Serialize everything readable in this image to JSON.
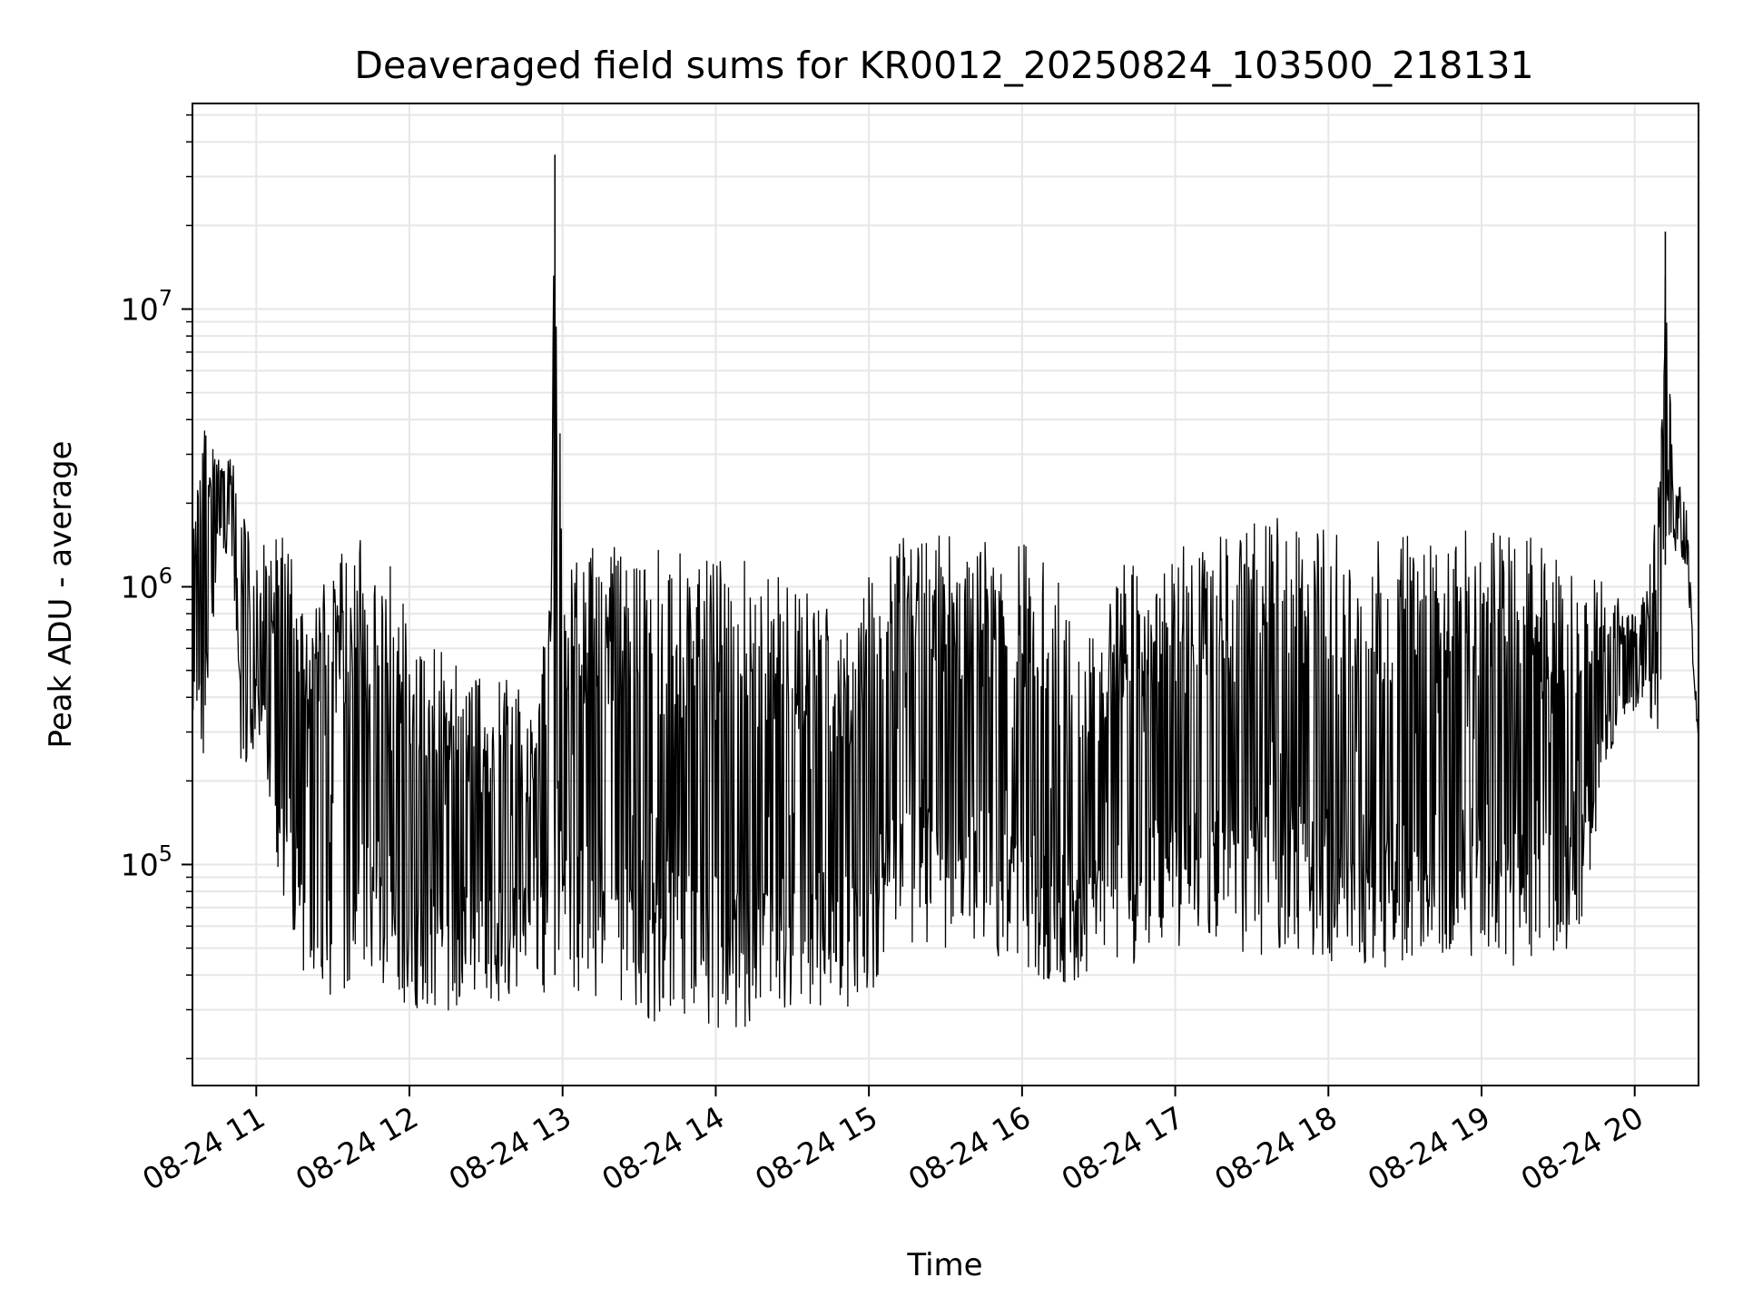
{
  "chart_data": {
    "type": "line",
    "title": "Deaveraged field sums for KR0012_20250824_103500_218131",
    "xlabel": "Time",
    "ylabel": "Peak ADU - average",
    "yscale": "log",
    "ylim": [
      16000,
      55000000
    ],
    "xlim": [
      "2025-08-24 10:35",
      "2025-08-24 20:25"
    ],
    "x_tick_labels": [
      "08-24 11",
      "08-24 12",
      "08-24 13",
      "08-24 14",
      "08-24 15",
      "08-24 16",
      "08-24 17",
      "08-24 18",
      "08-24 19",
      "08-24 20"
    ],
    "y_ticks": [
      {
        "base": "10",
        "exp": "5",
        "value": 100000
      },
      {
        "base": "10",
        "exp": "6",
        "value": 1000000
      },
      {
        "base": "10",
        "exp": "7",
        "value": 10000000
      }
    ],
    "grid": true,
    "line_color": "#000000",
    "series": [
      {
        "x": [
          "10:35",
          "10:40",
          "10:45",
          "10:50",
          "10:55",
          "11:00",
          "11:05",
          "11:10",
          "11:15",
          "11:20",
          "11:25",
          "11:30",
          "11:35",
          "11:40",
          "11:45",
          "11:50",
          "11:55",
          "12:00",
          "12:10",
          "12:20",
          "12:30",
          "12:40",
          "12:50",
          "12:55",
          "12:57",
          "13:00",
          "13:10",
          "13:20",
          "13:30",
          "13:40",
          "13:50",
          "14:00",
          "14:10",
          "14:20",
          "14:30",
          "14:40",
          "14:50",
          "15:00",
          "15:10",
          "15:20",
          "15:30",
          "15:40",
          "15:50",
          "16:00",
          "16:10",
          "16:20",
          "16:30",
          "16:40",
          "16:50",
          "17:00",
          "17:10",
          "17:20",
          "17:30",
          "17:40",
          "17:50",
          "18:00",
          "18:10",
          "18:20",
          "18:30",
          "18:40",
          "18:50",
          "19:00",
          "19:10",
          "19:20",
          "19:30",
          "19:40",
          "19:50",
          "20:00",
          "20:05",
          "20:10",
          "20:12",
          "20:15",
          "20:20",
          "20:25"
        ],
        "max": [
          1500000,
          4300000,
          2900000,
          3000000,
          2000000,
          1300000,
          1500000,
          1600000,
          1200000,
          700000,
          1400000,
          1400000,
          1400000,
          2100000,
          1300000,
          1300000,
          1100000,
          700000,
          600000,
          560000,
          450000,
          500000,
          300000,
          1300000,
          36000000,
          1200000,
          1400000,
          1400000,
          1400000,
          1350000,
          1300000,
          1350000,
          1400000,
          1200000,
          1000000,
          950000,
          700000,
          1200000,
          1500000,
          1600000,
          1550000,
          1500000,
          1500000,
          1550000,
          1200000,
          900000,
          700000,
          1200000,
          1300000,
          1400000,
          1450000,
          1600000,
          1700000,
          1800000,
          1650000,
          1700000,
          1600000,
          1600000,
          1550000,
          1500000,
          1550000,
          1700000,
          1600000,
          1500000,
          1400000,
          1300000,
          1000000,
          800000,
          1000000,
          2800000,
          19000000,
          2500000,
          2200000,
          280000
        ],
        "min": [
          350000,
          200000,
          1500000,
          1200000,
          160000,
          300000,
          170000,
          75000,
          50000,
          35000,
          35000,
          30000,
          30000,
          32000,
          35000,
          32000,
          31000,
          30000,
          30000,
          29000,
          28000,
          35000,
          38000,
          32000,
          40000,
          35000,
          32000,
          31000,
          28000,
          26000,
          23000,
          24000,
          25000,
          27000,
          28000,
          28000,
          29000,
          32000,
          45000,
          52000,
          50000,
          48000,
          45000,
          40000,
          35000,
          38000,
          40000,
          42000,
          45000,
          48000,
          50000,
          48000,
          45000,
          50000,
          47000,
          45000,
          44000,
          42000,
          43000,
          44000,
          47000,
          45000,
          42000,
          41000,
          45000,
          60000,
          250000,
          350000,
          400000,
          200000,
          1200000,
          1300000,
          1200000,
          260000
        ]
      }
    ]
  }
}
